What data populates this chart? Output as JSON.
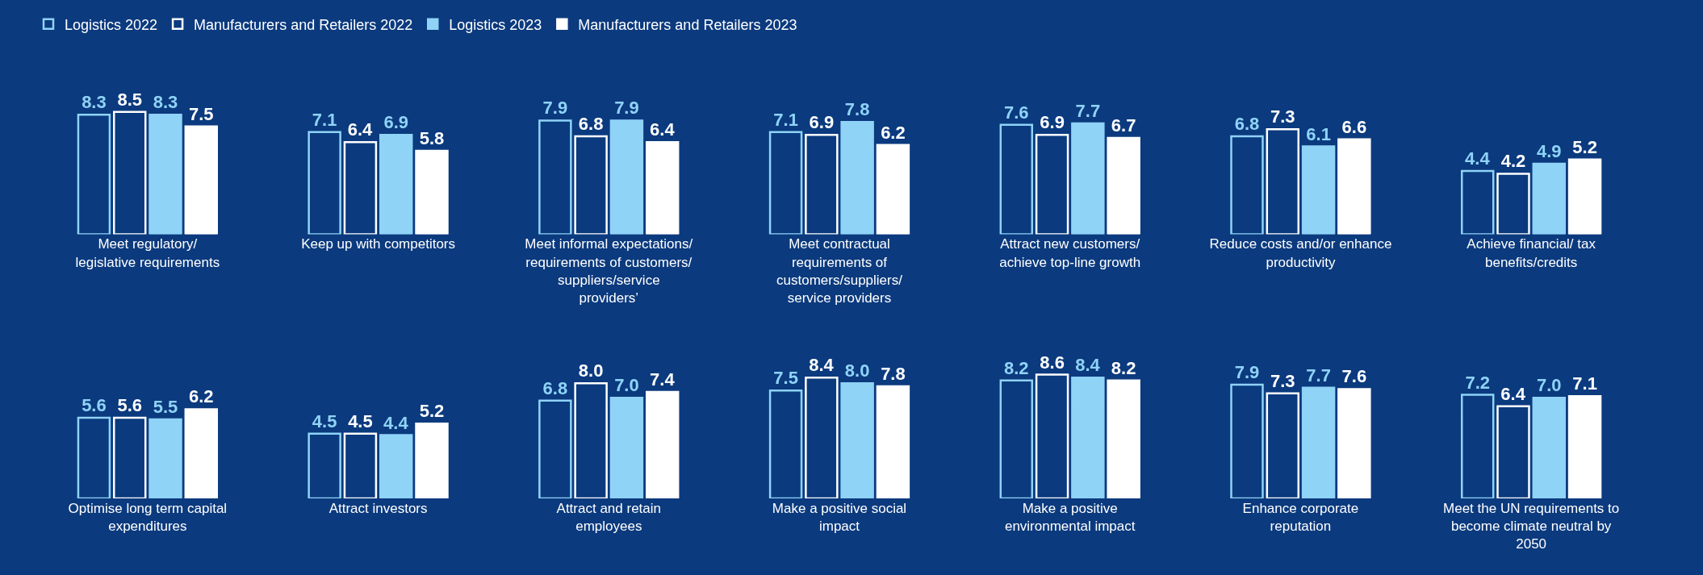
{
  "chart_data": [
    {
      "type": "bar",
      "legend": "top left",
      "categories": [
        "Meet regulatory/ legislative requirements",
        "Keep up with competitors",
        "Meet informal expectations/ requirements of customers/ suppliers/service providers’",
        "Meet contractual requirements of customers/suppliers/ service providers",
        "Attract new customers/ achieve top-line growth",
        "Reduce costs and/or enhance productivity",
        "Achieve financial/ tax benefits/credits"
      ],
      "series": [
        {
          "name": "Logistics 2022",
          "color": "#8fd3f7",
          "values": [
            8.3,
            7.1,
            7.9,
            7.1,
            7.6,
            6.8,
            4.4
          ],
          "value_labels": [
            "8.3",
            "7.1",
            "7.9",
            "7.1",
            "7.6",
            "6.8",
            "4.4"
          ]
        },
        {
          "name": "Manufacturers and Retailers 2022",
          "color": "#ffffff",
          "values": [
            8.5,
            6.4,
            6.8,
            6.9,
            6.9,
            7.3,
            4.2
          ],
          "value_labels": [
            "8.5",
            "6.4",
            "6.8",
            "6.9",
            "6.9",
            "7.3",
            "4.2"
          ]
        },
        {
          "name": "Logistics 2023",
          "color": "#8fd3f7",
          "values": [
            8.3,
            6.9,
            7.9,
            7.8,
            7.7,
            6.1,
            4.9
          ],
          "value_labels": [
            "8.3",
            "6.9",
            "7.9",
            "7.8",
            "7.7",
            "6.1",
            "4.9"
          ]
        },
        {
          "name": "Manufacturers and Retailers 2023",
          "color": "#ffffff",
          "values": [
            7.5,
            5.8,
            6.4,
            6.2,
            6.7,
            6.6,
            5.2
          ],
          "value_labels": [
            "7.5",
            "5.8",
            "6.4",
            "6.2",
            "6.7",
            "6.6",
            "5.2"
          ]
        }
      ]
    },
    {
      "type": "bar",
      "categories": [
        "Optimise long term capital expenditures",
        "Attract investors",
        "Attract and retain employees",
        "Make a positive social impact",
        "Make a positive environmental impact",
        "Enhance corporate reputation",
        "Meet the UN requirements to become climate neutral by 2050"
      ],
      "series": [
        {
          "color": "#8fd3f7",
          "values": [
            5.6,
            4.5,
            6.8,
            7.5,
            8.2,
            7.9,
            7.2
          ],
          "value_labels": [
            "5.6",
            "4.5",
            "6.8",
            "7.5",
            "8.2",
            "7.9",
            "7.2"
          ]
        },
        {
          "color": "#ffffff",
          "values": [
            5.6,
            4.5,
            8.0,
            8.4,
            8.6,
            7.3,
            6.4
          ],
          "value_labels": [
            "5.6",
            "4.5",
            "8.0",
            "8.4",
            "8.6",
            "7.3",
            "6.4"
          ]
        },
        {
          "color": "#8fd3f7",
          "values": [
            5.5,
            4.4,
            7.0,
            8.0,
            8.4,
            7.7,
            7.0
          ],
          "value_labels": [
            "5.5",
            "4.4",
            "7.0",
            "8.0",
            "8.4",
            "7.7",
            "7.0"
          ]
        },
        {
          "color": "#ffffff",
          "values": [
            6.2,
            5.2,
            7.4,
            7.8,
            8.2,
            7.6,
            7.1
          ],
          "value_labels": [
            "6.2",
            "5.2",
            "7.4",
            "7.8",
            "8.2",
            "7.6",
            "7.1"
          ]
        }
      ]
    }
  ]
}
